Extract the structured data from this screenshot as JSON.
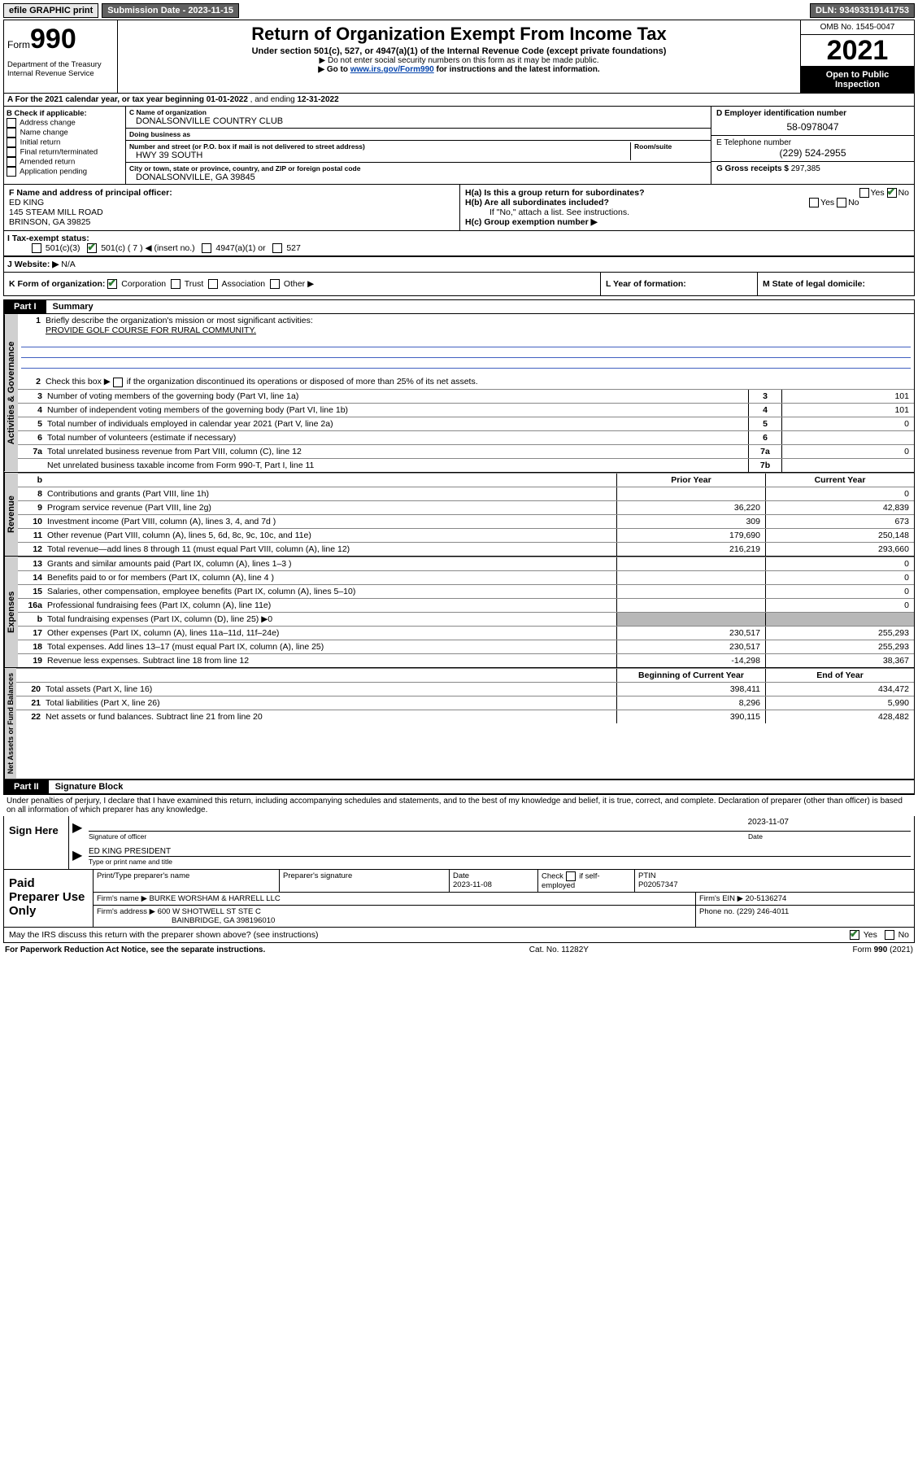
{
  "topbar": {
    "efile": "efile GRAPHIC print",
    "submission_label": "Submission Date - 2023-11-15",
    "dln_label": "DLN: 93493319141753"
  },
  "header": {
    "form_prefix": "Form",
    "form_number": "990",
    "title": "Return of Organization Exempt From Income Tax",
    "subtitle": "Under section 501(c), 527, or 4947(a)(1) of the Internal Revenue Code (except private foundations)",
    "note1": "▶ Do not enter social security numbers on this form as it may be made public.",
    "note2_pre": "▶ Go to ",
    "note2_link": "www.irs.gov/Form990",
    "note2_post": " for instructions and the latest information.",
    "dept": "Department of the Treasury\nInternal Revenue Service",
    "omb": "OMB No. 1545-0047",
    "year": "2021",
    "inspection": "Open to Public Inspection"
  },
  "row_a": {
    "prefix": "A  For the 2021 calendar year, or tax year beginning ",
    "begin": "01-01-2022",
    "mid": "   , and ending ",
    "end": "12-31-2022"
  },
  "section_b": {
    "label": "B Check if applicable:",
    "opts": [
      "Address change",
      "Name change",
      "Initial return",
      "Final return/terminated",
      "Amended return",
      "Application pending"
    ]
  },
  "section_c": {
    "name_label": "C Name of organization",
    "name": "DONALSONVILLE COUNTRY CLUB",
    "dba_label": "Doing business as",
    "dba": "",
    "street_label": "Number and street (or P.O. box if mail is not delivered to street address)",
    "room_label": "Room/suite",
    "street": "HWY 39 SOUTH",
    "city_label": "City or town, state or province, country, and ZIP or foreign postal code",
    "city": "DONALSONVILLE, GA  39845"
  },
  "section_d": {
    "ein_label": "D Employer identification number",
    "ein": "58-0978047",
    "phone_label": "E Telephone number",
    "phone": "(229) 524-2955",
    "gross_label": "G Gross receipts $ ",
    "gross": "297,385"
  },
  "section_f": {
    "label": "F  Name and address of principal officer:",
    "name": "ED KING",
    "addr1": "145 STEAM MILL ROAD",
    "addr2": "BRINSON, GA  39825"
  },
  "section_h": {
    "ha": "H(a)  Is this a group return for subordinates?",
    "hb": "H(b)  Are all subordinates included?",
    "hb_note": "If \"No,\" attach a list. See instructions.",
    "hc": "H(c)  Group exemption number ▶"
  },
  "row_i": {
    "label": "I    Tax-exempt status:",
    "opts": [
      "501(c)(3)",
      "501(c) ( 7 ) ◀ (insert no.)",
      "4947(a)(1) or",
      "527"
    ]
  },
  "row_j": {
    "label": "J    Website: ▶",
    "val": "N/A"
  },
  "row_k": {
    "label": "K Form of organization:",
    "opts": [
      "Corporation",
      "Trust",
      "Association",
      "Other ▶"
    ]
  },
  "row_l": {
    "label": "L Year of formation:",
    "val": ""
  },
  "row_m": {
    "label": "M State of legal domicile:",
    "val": ""
  },
  "part1": {
    "label": "Part I",
    "title": "Summary"
  },
  "summary": {
    "q1_label": "Briefly describe the organization's mission or most significant activities:",
    "q1_text": "PROVIDE GOLF COURSE FOR RURAL COMMUNITY.",
    "q2": "Check this box ▶",
    "q2_post": " if the organization discontinued its operations or disposed of more than 25% of its net assets.",
    "rows_gov": [
      {
        "n": "3",
        "t": "Number of voting members of the governing body (Part VI, line 1a)",
        "box": "3",
        "v": "101"
      },
      {
        "n": "4",
        "t": "Number of independent voting members of the governing body (Part VI, line 1b)",
        "box": "4",
        "v": "101"
      },
      {
        "n": "5",
        "t": "Total number of individuals employed in calendar year 2021 (Part V, line 2a)",
        "box": "5",
        "v": "0"
      },
      {
        "n": "6",
        "t": "Total number of volunteers (estimate if necessary)",
        "box": "6",
        "v": ""
      },
      {
        "n": "7a",
        "t": "Total unrelated business revenue from Part VIII, column (C), line 12",
        "box": "7a",
        "v": "0"
      },
      {
        "n": "",
        "t": "Net unrelated business taxable income from Form 990-T, Part I, line 11",
        "box": "7b",
        "v": ""
      }
    ],
    "prior_label": "Prior Year",
    "current_label": "Current Year",
    "rev_rows": [
      {
        "n": "8",
        "t": "Contributions and grants (Part VIII, line 1h)",
        "p": "",
        "c": "0"
      },
      {
        "n": "9",
        "t": "Program service revenue (Part VIII, line 2g)",
        "p": "36,220",
        "c": "42,839"
      },
      {
        "n": "10",
        "t": "Investment income (Part VIII, column (A), lines 3, 4, and 7d )",
        "p": "309",
        "c": "673"
      },
      {
        "n": "11",
        "t": "Other revenue (Part VIII, column (A), lines 5, 6d, 8c, 9c, 10c, and 11e)",
        "p": "179,690",
        "c": "250,148"
      },
      {
        "n": "12",
        "t": "Total revenue—add lines 8 through 11 (must equal Part VIII, column (A), line 12)",
        "p": "216,219",
        "c": "293,660"
      }
    ],
    "exp_rows": [
      {
        "n": "13",
        "t": "Grants and similar amounts paid (Part IX, column (A), lines 1–3 )",
        "p": "",
        "c": "0"
      },
      {
        "n": "14",
        "t": "Benefits paid to or for members (Part IX, column (A), line 4 )",
        "p": "",
        "c": "0"
      },
      {
        "n": "15",
        "t": "Salaries, other compensation, employee benefits (Part IX, column (A), lines 5–10)",
        "p": "",
        "c": "0"
      },
      {
        "n": "16a",
        "t": "Professional fundraising fees (Part IX, column (A), line 11e)",
        "p": "",
        "c": "0"
      },
      {
        "n": "b",
        "t": "Total fundraising expenses (Part IX, column (D), line 25) ▶0",
        "p": "shaded",
        "c": "shaded"
      },
      {
        "n": "17",
        "t": "Other expenses (Part IX, column (A), lines 11a–11d, 11f–24e)",
        "p": "230,517",
        "c": "255,293"
      },
      {
        "n": "18",
        "t": "Total expenses. Add lines 13–17 (must equal Part IX, column (A), line 25)",
        "p": "230,517",
        "c": "255,293"
      },
      {
        "n": "19",
        "t": "Revenue less expenses. Subtract line 18 from line 12",
        "p": "-14,298",
        "c": "38,367"
      }
    ],
    "begin_label": "Beginning of Current Year",
    "end_label": "End of Year",
    "net_rows": [
      {
        "n": "20",
        "t": "Total assets (Part X, line 16)",
        "p": "398,411",
        "c": "434,472"
      },
      {
        "n": "21",
        "t": "Total liabilities (Part X, line 26)",
        "p": "8,296",
        "c": "5,990"
      },
      {
        "n": "22",
        "t": "Net assets or fund balances. Subtract line 21 from line 20",
        "p": "390,115",
        "c": "428,482"
      }
    ]
  },
  "vtabs": {
    "gov": "Activities & Governance",
    "rev": "Revenue",
    "exp": "Expenses",
    "net": "Net Assets or Fund Balances"
  },
  "part2": {
    "label": "Part II",
    "title": "Signature Block",
    "declaration": "Under penalties of perjury, I declare that I have examined this return, including accompanying schedules and statements, and to the best of my knowledge and belief, it is true, correct, and complete. Declaration of preparer (other than officer) is based on all information of which preparer has any knowledge."
  },
  "sign": {
    "label": "Sign Here",
    "sig_of_officer": "Signature of officer",
    "date_label": "Date",
    "date": "2023-11-07",
    "name": "ED KING PRESIDENT",
    "name_label": "Type or print name and title"
  },
  "prep": {
    "label": "Paid Preparer Use Only",
    "col1": "Print/Type preparer's name",
    "col2": "Preparer's signature",
    "col3": "Date",
    "date": "2023-11-08",
    "col4_a": "Check",
    "col4_b": "if self-employed",
    "col5": "PTIN",
    "ptin": "P02057347",
    "firm_name_label": "Firm's name    ▶",
    "firm_name": "BURKE WORSHAM & HARRELL LLC",
    "firm_ein_label": "Firm's EIN ▶",
    "firm_ein": "20-5136274",
    "firm_addr_label": "Firm's address ▶",
    "firm_addr1": "600 W SHOTWELL ST STE C",
    "firm_addr2": "BAINBRIDGE, GA  398196010",
    "firm_phone_label": "Phone no.",
    "firm_phone": "(229) 246-4011"
  },
  "discuss": {
    "text": "May the IRS discuss this return with the preparer shown above? (see instructions)",
    "yes": "Yes",
    "no": "No"
  },
  "footer": {
    "left": "For Paperwork Reduction Act Notice, see the separate instructions.",
    "mid": "Cat. No. 11282Y",
    "right_pre": "Form ",
    "right_bold": "990",
    "right_post": " (2021)"
  }
}
